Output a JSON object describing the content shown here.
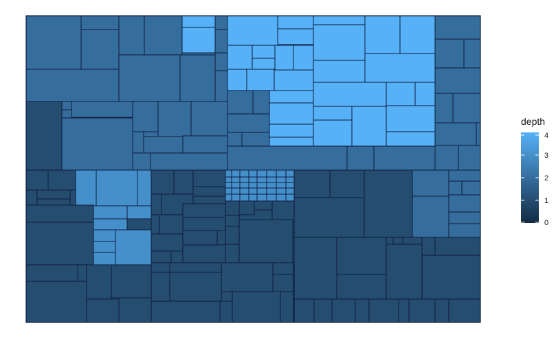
{
  "chart_data": {
    "type": "treemap",
    "title": "",
    "legend": {
      "title": "depth",
      "ticks": [
        4,
        3,
        2,
        1,
        0
      ],
      "range": [
        0,
        4
      ],
      "low_color": "#132b43",
      "high_color": "#56b1f7",
      "placement": "right"
    },
    "border_color": "#0f1b3d"
  }
}
